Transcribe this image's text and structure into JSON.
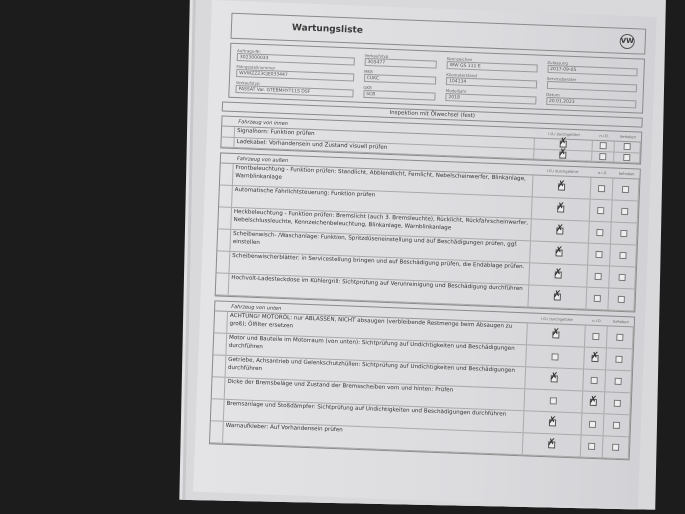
{
  "form": {
    "title": "Wartungsliste",
    "logo": "VW",
    "fields": [
      {
        "label": "Auftrags-Nr.",
        "value": "3023000033"
      },
      {
        "label": "Verkaufstyp",
        "value": "3G5477"
      },
      {
        "label": "Kennzeichen",
        "value": "WW GS 111 E"
      },
      {
        "label": "Zulassung",
        "value": "2017-09-05"
      },
      {
        "label": "Fahrgestellnummer",
        "value": "WVWZZZ3CJE033447"
      },
      {
        "label": "MKB",
        "value": "CUKC"
      },
      {
        "label": "Kilometerstand",
        "value": "104134"
      },
      {
        "label": "Serviceberater",
        "value": ""
      },
      {
        "label": "Verkaufstyp",
        "value": "PASSAT Var. GTEBMHYT11S DSF"
      },
      {
        "label": "GKB",
        "value": "SCB"
      },
      {
        "label": "Modelljahr",
        "value": "2018"
      },
      {
        "label": "Datum",
        "value": "20.01.2023"
      }
    ],
    "inspection": "Inspektion mit Ölwechsel (fest)",
    "columns": [
      "i.O./ durchgeführt",
      "n.i.O.",
      "behoben"
    ],
    "sections": [
      {
        "title": "Fahrzeug von innen",
        "rows": [
          {
            "text": "Signalhorn: Funktion prüfen",
            "checks": [
              true,
              false,
              false
            ]
          },
          {
            "text": "Ladekabel: Vorhandensein und Zustand visuell prüfen",
            "checks": [
              true,
              false,
              false
            ]
          }
        ]
      },
      {
        "title": "Fahrzeug von außen",
        "rows": [
          {
            "text": "Frontbeleuchtung - Funktion prüfen: Standlicht, Abblendlicht, Fernlicht, Nebelscheinwerfer, Blinkanlage, Warnblinkanlage",
            "checks": [
              true,
              false,
              false
            ]
          },
          {
            "text": "Automatische Fahrlichtsteuerung: Funktion prüfen",
            "checks": [
              true,
              false,
              false
            ]
          },
          {
            "text": "Heckbeleuchtung - Funktion prüfen: Bremslicht (auch 3. Bremsleuchte), Rücklicht, Rückfahrscheinwerfer, Nebelschlussleuchte, Kennzeichenbeleuchtung, Blinkanlage, Warnblinkanlage",
            "checks": [
              true,
              false,
              false
            ]
          },
          {
            "text": "Scheibenwisch- /Waschanlage: Funktion, Spritzdüseneinstellung und auf Beschädigungen prüfen, ggf. einstellen",
            "checks": [
              true,
              false,
              false
            ]
          },
          {
            "text": "Scheibenwischerblätter: in Servicestellung bringen und auf Beschädigung prüfen, die Endablage prüfen.",
            "checks": [
              true,
              false,
              false
            ]
          },
          {
            "text": "Hochvolt-Ladesteckdose im Kühlergrill: Sichtprüfung auf Verunreinigung und Beschädigung durchführen",
            "checks": [
              true,
              false,
              false
            ]
          }
        ]
      },
      {
        "title": "Fahrzeug von unten",
        "rows": [
          {
            "text": "ACHTUNG! MOTORÖL: nur ABLASSEN, NICHT absaugen (verbleibende Restmenge beim Absaugen zu groß); Ölfilter ersetzen",
            "checks": [
              true,
              false,
              false
            ]
          },
          {
            "text": "Motor und Bauteile im Motorraum (von unten): Sichtprüfung auf Undichtigkeiten und Beschädigungen durchführen",
            "checks": [
              false,
              true,
              false
            ]
          },
          {
            "text": "Getriebe, Achsantrieb und Gelenkschutzhüllen: Sichtprüfung auf Undichtigkeiten und Beschädigungen durchführen",
            "checks": [
              true,
              false,
              false
            ]
          },
          {
            "text": "Dicke der Bremsbeläge und Zustand der Bremsscheiben vorn und hinten: Prüfen",
            "checks": [
              false,
              true,
              false
            ]
          },
          {
            "text": "Bremsanlage und Stoßdämpfer: Sichtprüfung auf Undichtigkeiten und Beschädigungen durchführen",
            "checks": [
              true,
              false,
              false
            ]
          },
          {
            "text": "Warnaufkleber: Auf Vorhandensein prüfen",
            "checks": [
              true,
              false,
              false
            ]
          }
        ]
      }
    ]
  }
}
